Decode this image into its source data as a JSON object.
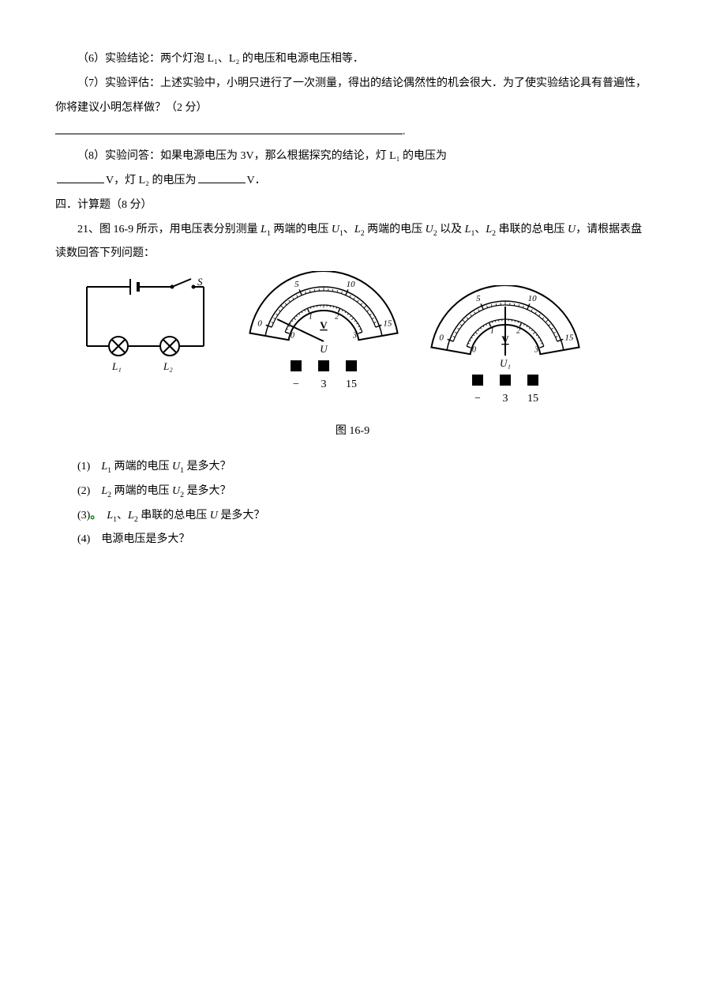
{
  "p6": "（6）实验结论：两个灯泡 L₁、L₂ 的电压和电源电压相等．",
  "p7": "（7）实验评估：上述实验中，小明只进行了一次测量，得出的结论偶然性的机会很大．为了使实验结论具有普遍性，你将建议小明怎样做？（2 分）",
  "p8a": "（8）实验问答：如果电源电压为 3V，那么根据探究的结论，灯 L₁ 的电压为",
  "p8b_prefix": "",
  "p8b_unit1": "V，灯 L₂ 的电压为",
  "p8b_unit2": "V．",
  "sec4": "四．计算题（8 分）",
  "q21_intro_a": "21、图 16-9 所示，用电压表分别测量 ",
  "q21_L1": "L",
  "q21_sub1": "1",
  "q21_intro_b": " 两端的电压 ",
  "q21_U1": "U",
  "q21_intro_c": "、",
  "q21_L2": "L",
  "q21_sub2": "2",
  "q21_intro_d": " 两端的电压 ",
  "q21_U2": "U",
  "q21_intro_e": " 以及 ",
  "q21_intro_f": "、",
  "q21_intro_g": " 串联的总电压 ",
  "q21_Utot": "U",
  "q21_intro_h": "，请根据表盘读数回答下列问题：",
  "circuit": {
    "switch_label": "S",
    "lamp1_label": "L₁",
    "lamp2_label": "L₂",
    "stroke": "#000000",
    "stroke_width": 2
  },
  "meterA": {
    "label_center": "V",
    "label_under": "U",
    "terminals": [
      "−",
      "3",
      "15"
    ],
    "outer_ticks_labels": [
      "0",
      "5",
      "10",
      "15"
    ],
    "inner_ticks_labels": [
      "0",
      "1",
      "2",
      "3"
    ],
    "needle_angle_deg": 150,
    "arc_color": "#000000",
    "tick_color": "#000000",
    "bg": "#ffffff"
  },
  "meterB": {
    "label_center": "V",
    "label_under": "U₁",
    "terminals": [
      "−",
      "3",
      "15"
    ],
    "outer_ticks_labels": [
      "0",
      "5",
      "10",
      "15"
    ],
    "inner_ticks_labels": [
      "0",
      "1",
      "2",
      "3"
    ],
    "needle_angle_deg": 90,
    "arc_color": "#000000",
    "tick_color": "#000000",
    "bg": "#ffffff"
  },
  "fig_caption": "图 16-9",
  "sub_q": {
    "q1_a": "(1)　",
    "q1_b": " 两端的电压 ",
    "q1_c": " 是多大？",
    "q2_a": "(2)　",
    "q2_b": " 两端的电压 ",
    "q2_c": " 是多大？",
    "q3_a": "(3)",
    "q3_dot": "。",
    "q3_b": "　",
    "q3_c": "、",
    "q3_d": " 串联的总电压 ",
    "q3_e": " 是多大？",
    "q4": "(4)　电源电压是多大？"
  },
  "blank_period": "."
}
